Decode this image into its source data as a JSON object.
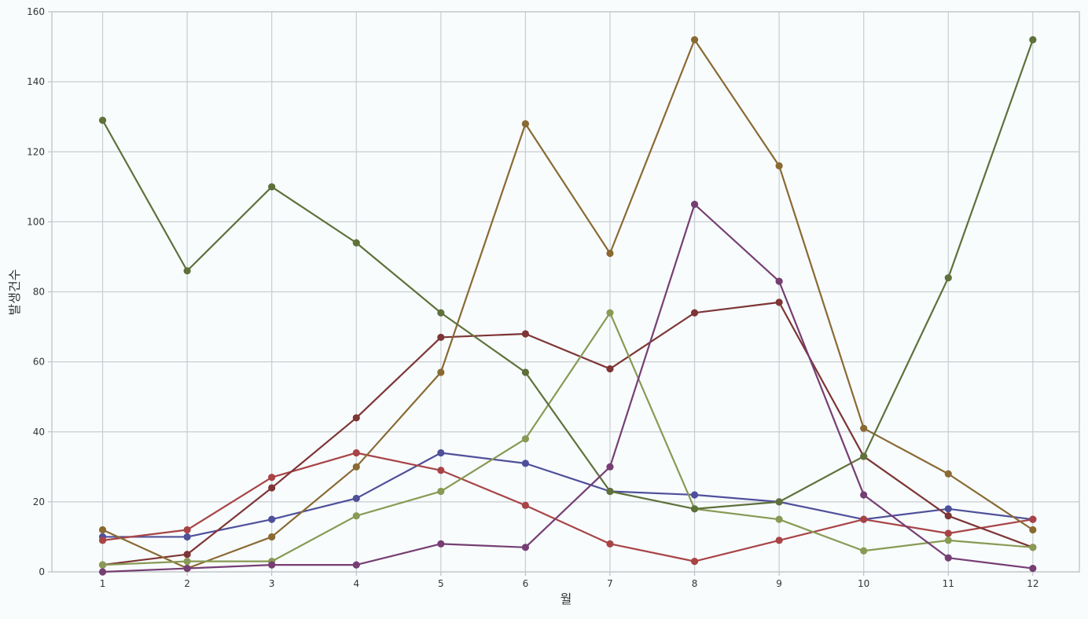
{
  "chart_data": {
    "type": "line",
    "title": "",
    "xlabel": "월",
    "ylabel": "발생건수",
    "x": [
      1,
      2,
      3,
      4,
      5,
      6,
      7,
      8,
      9,
      10,
      11,
      12
    ],
    "xtick_labels": [
      "1",
      "2",
      "3",
      "4",
      "5",
      "6",
      "7",
      "8",
      "9",
      "10",
      "11",
      "12"
    ],
    "xlim": [
      0.4,
      12.55
    ],
    "ylim": [
      0,
      160
    ],
    "yticks": [
      0,
      20,
      40,
      60,
      80,
      100,
      120,
      140,
      160
    ],
    "ytick_labels": [
      "0",
      "20",
      "40",
      "60",
      "80",
      "100",
      "120",
      "140",
      "160"
    ],
    "grid": true,
    "legend": "none",
    "background_color": "#f8fcfd",
    "grid_color": "#c9cdd0",
    "series": [
      {
        "color": "#4f509a",
        "values": [
          10,
          10,
          15,
          21,
          34,
          31,
          23,
          22,
          20,
          15,
          18,
          15
        ]
      },
      {
        "color": "#a84446",
        "values": [
          9,
          12,
          27,
          34,
          29,
          19,
          8,
          3,
          9,
          15,
          11,
          15
        ]
      },
      {
        "color": "#7e3535",
        "values": [
          2,
          5,
          24,
          44,
          67,
          68,
          58,
          74,
          77,
          33,
          16,
          7
        ]
      },
      {
        "color": "#8a6a33",
        "values": [
          12,
          1,
          10,
          30,
          57,
          128,
          91,
          152,
          116,
          41,
          28,
          12
        ]
      },
      {
        "color": "#889a54",
        "values": [
          2,
          3,
          3,
          16,
          23,
          38,
          74,
          18,
          15,
          6,
          9,
          7
        ]
      },
      {
        "color": "#5e713a",
        "values": [
          129,
          86,
          110,
          94,
          74,
          57,
          23,
          18,
          20,
          33,
          84,
          152
        ]
      },
      {
        "color": "#763e73",
        "values": [
          0,
          1,
          2,
          2,
          8,
          7,
          30,
          105,
          83,
          22,
          4,
          1
        ]
      }
    ]
  }
}
